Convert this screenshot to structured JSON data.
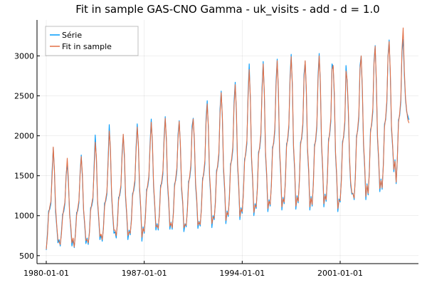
{
  "chart_data": {
    "type": "line",
    "title": "Fit in sample GAS-CNO Gamma - uk_visits - add - d = 1.0",
    "xlabel": "",
    "ylabel": "",
    "x_start": "1980-01",
    "x_end": "2005-12",
    "x_frequency": "monthly",
    "xticks": [
      "1980-01-01",
      "1987-01-01",
      "1994-01-01",
      "2001-01-01"
    ],
    "ylim": [
      400,
      3450
    ],
    "yticks": [
      500,
      1000,
      1500,
      2000,
      2500,
      3000
    ],
    "grid": true,
    "legend_position": "top-left",
    "series": [
      {
        "name": "Série",
        "color": "#009AFA",
        "values": [
          570,
          780,
          1060,
          1080,
          1150,
          1560,
          1850,
          1550,
          1040,
          860,
          660,
          700,
          620,
          800,
          1020,
          1050,
          1150,
          1510,
          1650,
          1400,
          1050,
          840,
          620,
          700,
          600,
          780,
          1040,
          1060,
          1160,
          1540,
          1760,
          1470,
          1060,
          870,
          650,
          720,
          640,
          800,
          1100,
          1120,
          1200,
          1620,
          2010,
          1700,
          1160,
          950,
          700,
          760,
          680,
          850,
          1160,
          1180,
          1270,
          1700,
          2140,
          1820,
          1250,
          1000,
          780,
          800,
          720,
          920,
          1230,
          1250,
          1350,
          1790,
          2010,
          1710,
          1220,
          1000,
          700,
          820,
          760,
          960,
          1280,
          1310,
          1410,
          1860,
          2150,
          1860,
          1320,
          1080,
          680,
          860,
          780,
          1000,
          1330,
          1360,
          1470,
          1910,
          2210,
          1900,
          1360,
          1120,
          820,
          900,
          820,
          1040,
          1380,
          1400,
          1520,
          1980,
          2240,
          1930,
          1380,
          1150,
          830,
          920,
          830,
          1050,
          1400,
          1440,
          1560,
          2020,
          2190,
          1870,
          1330,
          1150,
          800,
          900,
          860,
          1090,
          1430,
          1470,
          1600,
          2120,
          2220,
          1920,
          1380,
          1180,
          840,
          930,
          870,
          1100,
          1470,
          1510,
          1650,
          2220,
          2440,
          2080,
          1480,
          1240,
          850,
          1000,
          950,
          1180,
          1570,
          1610,
          1750,
          2340,
          2560,
          2210,
          1560,
          1300,
          900,
          1060,
          990,
          1240,
          1650,
          1690,
          1830,
          2430,
          2670,
          2300,
          1630,
          1360,
          950,
          1100,
          1030,
          1290,
          1710,
          1760,
          1900,
          2520,
          2900,
          2450,
          1700,
          1420,
          1000,
          1150,
          1090,
          1360,
          1800,
          1840,
          1990,
          2610,
          2930,
          2500,
          1760,
          1480,
          1050,
          1200,
          1120,
          1400,
          1860,
          1900,
          2060,
          2680,
          2960,
          2560,
          1800,
          1520,
          1070,
          1230,
          1150,
          1440,
          1900,
          1940,
          2100,
          2740,
          3020,
          2610,
          1840,
          1550,
          1080,
          1250,
          1160,
          1450,
          1920,
          1960,
          2120,
          2770,
          2930,
          2540,
          1810,
          1540,
          1070,
          1240,
          1120,
          1420,
          1890,
          1930,
          2100,
          2750,
          3030,
          2650,
          1880,
          1570,
          1110,
          1270,
          1180,
          1480,
          1960,
          2010,
          2180,
          2900,
          2860,
          2480,
          1760,
          1480,
          1050,
          1210,
          1170,
          1460,
          1930,
          1980,
          2150,
          2880,
          2660,
          2290,
          1700,
          1380,
          1270,
          1280,
          1200,
          1500,
          2000,
          2060,
          2220,
          2880,
          3000,
          2560,
          1880,
          1600,
          1200,
          1400,
          1260,
          1560,
          2080,
          2130,
          2300,
          2940,
          3130,
          2650,
          1960,
          1680,
          1300,
          1460,
          1330,
          1650,
          2150,
          2200,
          2400,
          3000,
          3200,
          2750,
          2080,
          1850,
          1550,
          1700,
          1400,
          1720,
          2200,
          2250,
          2420,
          3050,
          3210,
          2760,
          2450,
          2300,
          2250,
          2200
        ]
      },
      {
        "name": "Fit in sample",
        "color": "#E26F46",
        "values": [
          580,
          740,
          1020,
          1110,
          1180,
          1490,
          1860,
          1580,
          1100,
          880,
          700,
          670,
          640,
          770,
          980,
          1090,
          1170,
          1480,
          1720,
          1450,
          1010,
          880,
          660,
          720,
          610,
          760,
          1000,
          1090,
          1190,
          1510,
          1740,
          1520,
          1080,
          900,
          690,
          700,
          660,
          780,
          1060,
          1150,
          1230,
          1560,
          1920,
          1740,
          1190,
          980,
          740,
          770,
          700,
          830,
          1110,
          1210,
          1300,
          1650,
          2060,
          1860,
          1290,
          1030,
          820,
          820,
          750,
          890,
          1190,
          1280,
          1380,
          1740,
          2020,
          1770,
          1260,
          1030,
          750,
          800,
          780,
          930,
          1240,
          1340,
          1450,
          1810,
          2110,
          1900,
          1360,
          1110,
          730,
          840,
          800,
          970,
          1290,
          1390,
          1500,
          1860,
          2170,
          1940,
          1400,
          1150,
          860,
          880,
          840,
          1010,
          1340,
          1430,
          1560,
          1930,
          2220,
          1970,
          1420,
          1190,
          870,
          910,
          850,
          1020,
          1360,
          1470,
          1600,
          1970,
          2180,
          1900,
          1370,
          1180,
          850,
          890,
          880,
          1060,
          1390,
          1500,
          1640,
          2060,
          2210,
          1960,
          1420,
          1220,
          880,
          920,
          890,
          1070,
          1430,
          1540,
          1690,
          2160,
          2400,
          2120,
          1520,
          1280,
          900,
          980,
          970,
          1150,
          1530,
          1640,
          1790,
          2280,
          2540,
          2250,
          1610,
          1340,
          940,
          1040,
          1010,
          1210,
          1610,
          1720,
          1870,
          2370,
          2640,
          2340,
          1670,
          1400,
          990,
          1080,
          1050,
          1260,
          1670,
          1790,
          1940,
          2460,
          2830,
          2480,
          1740,
          1460,
          1040,
          1130,
          1110,
          1330,
          1760,
          1870,
          2030,
          2550,
          2900,
          2540,
          1800,
          1520,
          1090,
          1180,
          1140,
          1370,
          1820,
          1930,
          2100,
          2620,
          2940,
          2600,
          1840,
          1560,
          1110,
          1210,
          1170,
          1410,
          1860,
          1970,
          2140,
          2680,
          2990,
          2650,
          1880,
          1590,
          1120,
          1230,
          1180,
          1420,
          1880,
          1990,
          2160,
          2710,
          2940,
          2580,
          1850,
          1580,
          1110,
          1220,
          1140,
          1390,
          1850,
          1960,
          2140,
          2690,
          3000,
          2690,
          1920,
          1610,
          1150,
          1250,
          1200,
          1450,
          1920,
          2040,
          2220,
          2830,
          2880,
          2530,
          1800,
          1520,
          1090,
          1190,
          1190,
          1430,
          1890,
          2010,
          2190,
          2810,
          2700,
          2340,
          1740,
          1420,
          1290,
          1270,
          1220,
          1470,
          1960,
          2090,
          2260,
          2830,
          3000,
          2610,
          1920,
          1640,
          1240,
          1380,
          1280,
          1530,
          2040,
          2160,
          2340,
          2900,
          3120,
          2700,
          2000,
          1720,
          1340,
          1440,
          1350,
          1620,
          2110,
          2230,
          2440,
          2980,
          3180,
          2800,
          2120,
          1880,
          1580,
          1680,
          1420,
          1700,
          2160,
          2280,
          2460,
          3080,
          3350,
          2820,
          2480,
          2320,
          2200,
          2160
        ]
      }
    ]
  }
}
